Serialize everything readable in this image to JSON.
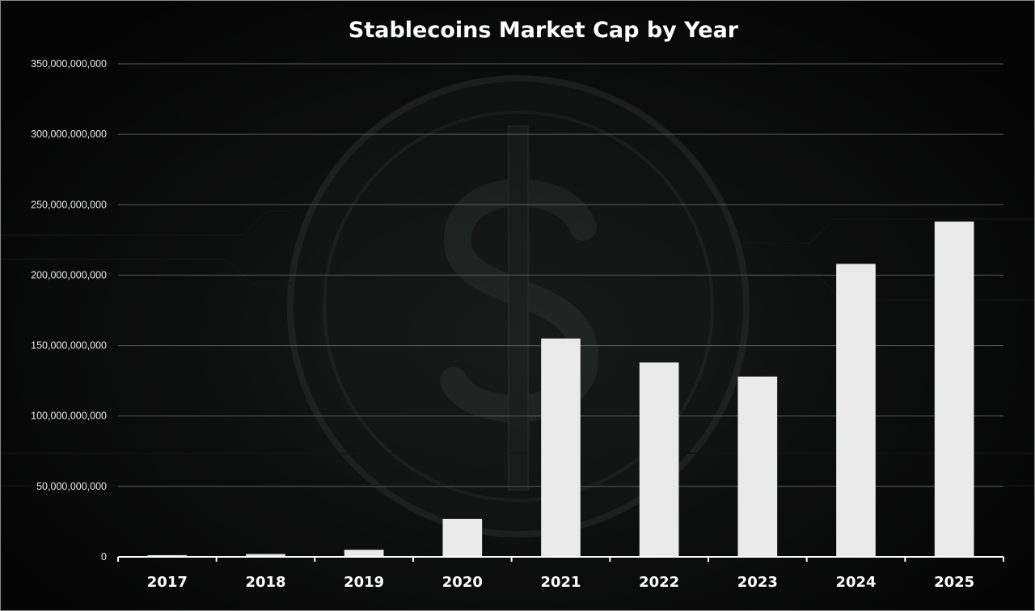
{
  "chart_data": {
    "type": "bar",
    "title": "Stablecoins Market Cap by Year",
    "xlabel": "",
    "ylabel": "",
    "categories": [
      "2017",
      "2018",
      "2019",
      "2020",
      "2021",
      "2022",
      "2023",
      "2024",
      "2025"
    ],
    "values": [
      1200000000,
      2000000000,
      5000000000,
      27000000000,
      155000000000,
      138000000000,
      128000000000,
      208000000000,
      238000000000
    ],
    "ylim": [
      0,
      350000000000
    ],
    "yticks": [
      "0",
      "50,000,000,000",
      "100,000,000,000",
      "150,000,000,000",
      "200,000,000,000",
      "250,000,000,000",
      "300,000,000,000",
      "350,000,000,000"
    ],
    "grid": true,
    "legend": "none",
    "colors": {
      "bar": "#eaeaea",
      "background": "#050505",
      "text": "#ffffff",
      "grid": "#5a5a5a"
    }
  },
  "background_icon": "dollar-coin-icon"
}
